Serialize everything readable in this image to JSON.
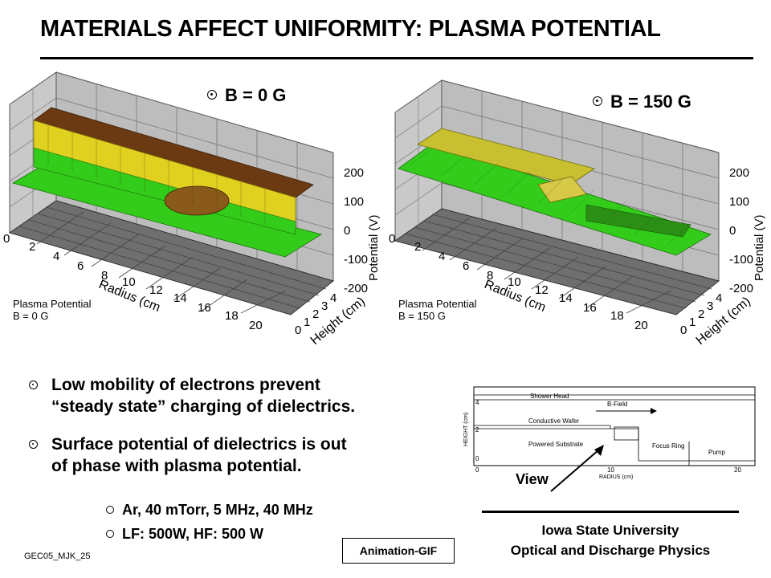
{
  "title": "MATERIALS AFFECT UNIFORMITY: PLASMA POTENTIAL",
  "plots": [
    {
      "heading": "B = 0  G",
      "potential_ticks": [
        "200",
        "100",
        "0",
        "-100",
        "-200"
      ],
      "potential_label": "Potential (V)",
      "radius_ticks": [
        "0",
        "2",
        "4",
        "6",
        "8",
        "10",
        "12",
        "14",
        "16",
        "18",
        "20"
      ],
      "radius_label": "Radius (cm",
      "height_ticks": [
        "0",
        "1",
        "2",
        "3",
        "4"
      ],
      "height_label": "Height (cm)",
      "legend_line1": "Plasma Potential",
      "legend_line2": "B = 0 G"
    },
    {
      "heading": "B = 150  G",
      "potential_ticks": [
        "200",
        "100",
        "0",
        "-100",
        "-200"
      ],
      "potential_label": "Potential (V)",
      "radius_ticks": [
        "0",
        "2",
        "4",
        "6",
        "8",
        "10",
        "12",
        "14",
        "16",
        "18",
        "20"
      ],
      "radius_label": "Radius (cm",
      "height_ticks": [
        "0",
        "1",
        "2",
        "3",
        "4"
      ],
      "height_label": "Height (cm)",
      "legend_line1": "Plasma Potential",
      "legend_line2": "B = 150 G"
    }
  ],
  "bullets": [
    {
      "line1": "Low mobility of electrons prevent",
      "line2": "“steady state” charging of dielectrics."
    },
    {
      "line1": "Surface potential of dielectrics is out",
      "line2": "of phase with plasma potential."
    }
  ],
  "sub_bullets": [
    "Ar, 40 mTorr, 5 MHz, 40 MHz",
    "LF: 500W, HF: 500 W"
  ],
  "geometry": {
    "shower_head": "Shower Head",
    "b_field": "B-Field",
    "conductive_wafer": "Conductive Wafer",
    "powered_substrate": "Powered Substrate",
    "focus_ring": "Focus Ring",
    "pump": "Pump",
    "ylabel": "HEIGHT (cm)",
    "xlabel": "RADIUS (cm)",
    "y_ticks": [
      "4",
      "2",
      "0"
    ],
    "x_ticks": [
      "0",
      "10",
      "20"
    ]
  },
  "view_label": "View",
  "animation_button": "Animation-GIF",
  "footer_code": "GEC05_MJK_25",
  "institution_line1": "Iowa State University",
  "institution_line2": "Optical and Discharge Physics",
  "colors": {
    "surface_brown": "#6b3a12",
    "surface_yellow": "#e0d020",
    "surface_green": "#33cc1a",
    "wall_grey": "#bdbdbd",
    "floor_grey": "#6f6f6f"
  }
}
